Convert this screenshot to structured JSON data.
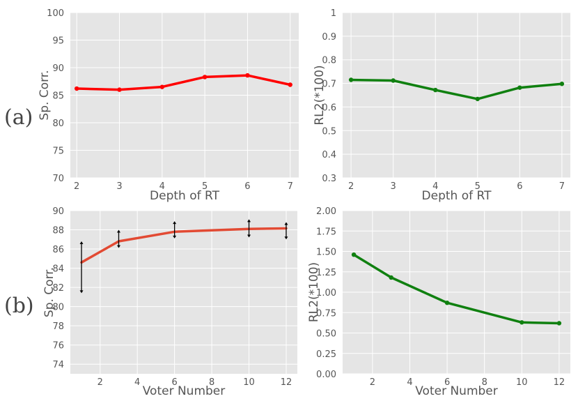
{
  "row_labels": [
    "(a)",
    "(b)"
  ],
  "chart_data": [
    {
      "id": "a-left",
      "type": "line",
      "title": "",
      "xlabel": "Depth of RT",
      "ylabel": "Sp. Corr.",
      "x": [
        2,
        3,
        4,
        5,
        6,
        7
      ],
      "xticks": [
        2,
        3,
        4,
        5,
        6,
        7
      ],
      "xlim": [
        1.85,
        7.2
      ],
      "ylim": [
        70,
        100
      ],
      "yticks": [
        70,
        75,
        80,
        85,
        90,
        95,
        100
      ],
      "grid": true,
      "legend": "none",
      "series": [
        {
          "color": "#ff0000",
          "values": [
            86.2,
            86.0,
            86.5,
            88.3,
            88.6,
            86.9
          ]
        }
      ]
    },
    {
      "id": "a-right",
      "type": "line",
      "title": "",
      "xlabel": "Depth of RT",
      "ylabel": "RL2(*100)",
      "x": [
        2,
        3,
        4,
        5,
        6,
        7
      ],
      "xticks": [
        2,
        3,
        4,
        5,
        6,
        7
      ],
      "xlim": [
        1.8,
        7.2
      ],
      "ylim": [
        0.3,
        1.0
      ],
      "yticks": [
        0.3,
        0.4,
        0.5,
        0.6,
        0.7,
        0.8,
        0.9,
        1.0
      ],
      "grid": true,
      "legend": "none",
      "series": [
        {
          "color": "#108010",
          "values": [
            0.715,
            0.712,
            0.672,
            0.634,
            0.682,
            0.698
          ]
        }
      ]
    },
    {
      "id": "b-left",
      "type": "line",
      "title": "",
      "xlabel": "Voter Number",
      "ylabel": "Sp. Corr.",
      "x": [
        1,
        3,
        6,
        10,
        12
      ],
      "xticks": [
        2,
        4,
        6,
        8,
        10,
        12
      ],
      "xlim": [
        0.4,
        12.6
      ],
      "ylim": [
        73,
        90
      ],
      "yticks": [
        74,
        76,
        78,
        80,
        82,
        84,
        86,
        88,
        90
      ],
      "grid": true,
      "legend": "none",
      "series": [
        {
          "color": "#e24a33",
          "values": [
            84.6,
            86.8,
            87.8,
            88.1,
            88.15
          ],
          "error_low": [
            81.4,
            86.1,
            87.1,
            87.2,
            87.0
          ],
          "error_high": [
            86.8,
            88.0,
            88.9,
            89.1,
            88.8
          ]
        }
      ]
    },
    {
      "id": "b-right",
      "type": "line",
      "title": "",
      "xlabel": "Voter Number",
      "ylabel": "RL2(*100)",
      "x": [
        1,
        3,
        6,
        10,
        12
      ],
      "xticks": [
        2,
        4,
        6,
        8,
        10,
        12
      ],
      "xlim": [
        0.4,
        12.6
      ],
      "ylim": [
        0.0,
        2.0
      ],
      "yticks": [
        0.0,
        0.25,
        0.5,
        0.75,
        1.0,
        1.25,
        1.5,
        1.75,
        2.0
      ],
      "ytick_labels": [
        "0.00",
        "0.25",
        "0.50",
        "0.75",
        "1.00",
        "1.25",
        "1.50",
        "1.75",
        "2.00"
      ],
      "grid": true,
      "legend": "none",
      "series": [
        {
          "color": "#108010",
          "values": [
            1.46,
            1.18,
            0.87,
            0.63,
            0.62
          ]
        }
      ]
    }
  ]
}
